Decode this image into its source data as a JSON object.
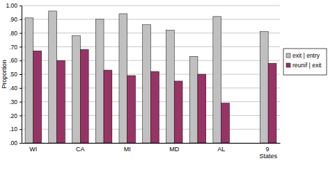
{
  "chart_data": {
    "type": "bar",
    "y_label": "Proportion",
    "categories": [
      "WI",
      null,
      "CA",
      null,
      "MI",
      null,
      "MD",
      null,
      "AL",
      null,
      "9 States"
    ],
    "series": [
      {
        "name": "exit | entry",
        "color": "#c0c0c0",
        "values": [
          0.91,
          0.96,
          0.78,
          0.9,
          0.94,
          0.86,
          0.82,
          0.63,
          0.92,
          null,
          0.81
        ]
      },
      {
        "name": "reunif | exit",
        "color": "#993366",
        "values": [
          0.67,
          0.6,
          0.68,
          0.53,
          0.49,
          0.52,
          0.45,
          0.5,
          0.29,
          null,
          0.58
        ]
      }
    ],
    "ylim": [
      0,
      1
    ],
    "yticks": [
      {
        "value": 0,
        "label": ".00"
      },
      {
        "value": 0.1,
        "label": ".10"
      },
      {
        "value": 0.2,
        "label": ".20"
      },
      {
        "value": 0.3,
        "label": ".30"
      },
      {
        "value": 0.4,
        "label": ".40"
      },
      {
        "value": 0.5,
        "label": ".50"
      },
      {
        "value": 0.6,
        "label": ".60"
      },
      {
        "value": 0.7,
        "label": ".70"
      },
      {
        "value": 0.8,
        "label": ".80"
      },
      {
        "value": 0.9,
        "label": ".90"
      },
      {
        "value": 1,
        "label": "1.00"
      }
    ],
    "grid": true,
    "legend": "right"
  }
}
